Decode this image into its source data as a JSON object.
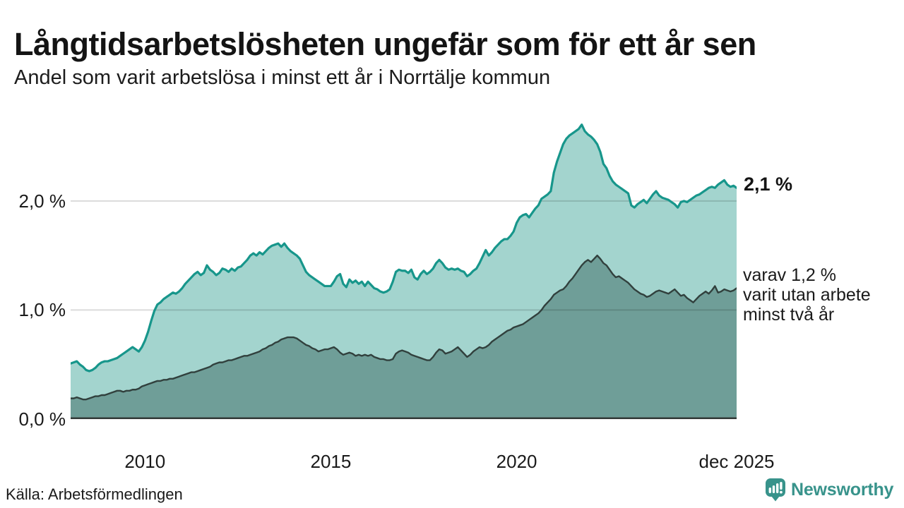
{
  "header": {
    "title": "Långtidsarbetslösheten ungefär som för ett år sen",
    "subtitle": "Andel som varit arbetslösa i minst ett år i Norrtälje kommun"
  },
  "annotations": {
    "end_value": "2,1 %",
    "note_lines": [
      "varav 1,2 %",
      "varit utan arbete",
      "minst två år"
    ]
  },
  "footer": {
    "source": "Källa: Arbetsförmedlingen",
    "logo_text": "Newsworthy"
  },
  "colors": {
    "accent_teal_line": "#17968b",
    "fill_light_teal": "#a3d4ce",
    "dark_line": "#31403d",
    "fill_dark_teal": "#6f9e98",
    "gridline_on_white": "#d9d9d9",
    "baseline": "#333a38",
    "text": "#1a1a1a",
    "logo_teal": "#38938b"
  },
  "chart_data": {
    "type": "area",
    "title": "Långtidsarbetslösheten ungefär som för ett år sen",
    "subtitle": "Andel som varit arbetslösa i minst ett år i Norrtälje kommun",
    "x_unit": "month",
    "x_start": "2008-01",
    "x_end": "2025-12",
    "ylim": [
      0,
      2.84
    ],
    "grid": "horizontal",
    "legend_position": "end-of-line-labels",
    "y_ticks": [
      {
        "label": "2,0 %",
        "value": 2.0
      },
      {
        "label": "1,0 %",
        "value": 1.0
      },
      {
        "label": "0,0 %",
        "value": 0.0
      }
    ],
    "x_ticks": [
      {
        "label": "2010",
        "month_index": 24
      },
      {
        "label": "2015",
        "month_index": 84
      },
      {
        "label": "2020",
        "month_index": 144
      },
      {
        "label": "dec 2025",
        "month_index": 215
      }
    ],
    "series": [
      {
        "name": "Arbetslösa minst ett år",
        "end_label": "2,1 %",
        "line_color": "#17968b",
        "fill_color": "#a3d4ce",
        "line_width": 3.2,
        "values": [
          0.51,
          0.52,
          0.53,
          0.5,
          0.48,
          0.45,
          0.44,
          0.45,
          0.47,
          0.5,
          0.52,
          0.53,
          0.53,
          0.54,
          0.55,
          0.56,
          0.58,
          0.6,
          0.62,
          0.64,
          0.66,
          0.64,
          0.62,
          0.66,
          0.72,
          0.8,
          0.9,
          0.99,
          1.05,
          1.07,
          1.1,
          1.12,
          1.14,
          1.16,
          1.15,
          1.17,
          1.2,
          1.24,
          1.27,
          1.3,
          1.33,
          1.35,
          1.32,
          1.34,
          1.41,
          1.37,
          1.35,
          1.32,
          1.34,
          1.38,
          1.37,
          1.35,
          1.38,
          1.36,
          1.39,
          1.4,
          1.43,
          1.46,
          1.5,
          1.52,
          1.5,
          1.53,
          1.51,
          1.54,
          1.57,
          1.59,
          1.6,
          1.61,
          1.58,
          1.61,
          1.57,
          1.54,
          1.52,
          1.5,
          1.47,
          1.41,
          1.35,
          1.32,
          1.3,
          1.28,
          1.26,
          1.24,
          1.22,
          1.22,
          1.22,
          1.26,
          1.31,
          1.33,
          1.24,
          1.21,
          1.28,
          1.25,
          1.27,
          1.24,
          1.26,
          1.22,
          1.26,
          1.23,
          1.2,
          1.19,
          1.17,
          1.16,
          1.17,
          1.19,
          1.26,
          1.35,
          1.37,
          1.36,
          1.36,
          1.34,
          1.37,
          1.3,
          1.28,
          1.33,
          1.36,
          1.33,
          1.35,
          1.38,
          1.43,
          1.46,
          1.43,
          1.39,
          1.37,
          1.38,
          1.37,
          1.38,
          1.36,
          1.35,
          1.31,
          1.33,
          1.36,
          1.38,
          1.43,
          1.49,
          1.55,
          1.5,
          1.53,
          1.57,
          1.6,
          1.63,
          1.65,
          1.65,
          1.68,
          1.72,
          1.8,
          1.85,
          1.87,
          1.88,
          1.85,
          1.89,
          1.93,
          1.96,
          2.02,
          2.04,
          2.06,
          2.09,
          2.26,
          2.36,
          2.44,
          2.52,
          2.57,
          2.6,
          2.62,
          2.64,
          2.66,
          2.7,
          2.64,
          2.61,
          2.59,
          2.56,
          2.52,
          2.45,
          2.34,
          2.3,
          2.23,
          2.18,
          2.15,
          2.13,
          2.11,
          2.09,
          2.07,
          1.96,
          1.94,
          1.97,
          1.99,
          2.01,
          1.98,
          2.02,
          2.06,
          2.09,
          2.05,
          2.03,
          2.02,
          2.01,
          1.99,
          1.97,
          1.94,
          1.99,
          2.0,
          1.99,
          2.01,
          2.03,
          2.05,
          2.06,
          2.08,
          2.1,
          2.12,
          2.13,
          2.12,
          2.15,
          2.17,
          2.19,
          2.15,
          2.13,
          2.14,
          2.12
        ]
      },
      {
        "name": "varav utan arbete minst två år",
        "end_label": "varav 1,2 % varit utan arbete minst två år",
        "line_color": "#31403d",
        "fill_color": "#6f9e98",
        "line_width": 2.4,
        "values": [
          0.19,
          0.19,
          0.2,
          0.19,
          0.18,
          0.18,
          0.19,
          0.2,
          0.21,
          0.21,
          0.22,
          0.22,
          0.23,
          0.24,
          0.25,
          0.26,
          0.26,
          0.25,
          0.26,
          0.26,
          0.27,
          0.27,
          0.28,
          0.3,
          0.31,
          0.32,
          0.33,
          0.34,
          0.35,
          0.35,
          0.36,
          0.36,
          0.37,
          0.37,
          0.38,
          0.39,
          0.4,
          0.41,
          0.42,
          0.43,
          0.43,
          0.44,
          0.45,
          0.46,
          0.47,
          0.48,
          0.5,
          0.51,
          0.52,
          0.52,
          0.53,
          0.54,
          0.54,
          0.55,
          0.56,
          0.57,
          0.58,
          0.58,
          0.59,
          0.6,
          0.61,
          0.62,
          0.64,
          0.65,
          0.67,
          0.68,
          0.7,
          0.71,
          0.73,
          0.74,
          0.75,
          0.75,
          0.75,
          0.74,
          0.72,
          0.7,
          0.68,
          0.67,
          0.65,
          0.64,
          0.62,
          0.63,
          0.64,
          0.64,
          0.65,
          0.66,
          0.64,
          0.61,
          0.59,
          0.6,
          0.61,
          0.6,
          0.58,
          0.59,
          0.58,
          0.59,
          0.58,
          0.59,
          0.57,
          0.56,
          0.55,
          0.55,
          0.54,
          0.54,
          0.55,
          0.6,
          0.62,
          0.63,
          0.62,
          0.61,
          0.59,
          0.58,
          0.57,
          0.56,
          0.55,
          0.54,
          0.54,
          0.57,
          0.61,
          0.64,
          0.63,
          0.6,
          0.61,
          0.62,
          0.64,
          0.66,
          0.63,
          0.6,
          0.57,
          0.59,
          0.62,
          0.64,
          0.66,
          0.65,
          0.66,
          0.68,
          0.71,
          0.73,
          0.75,
          0.77,
          0.79,
          0.81,
          0.82,
          0.84,
          0.85,
          0.86,
          0.87,
          0.89,
          0.91,
          0.93,
          0.95,
          0.97,
          1.0,
          1.04,
          1.07,
          1.1,
          1.14,
          1.16,
          1.18,
          1.19,
          1.22,
          1.26,
          1.29,
          1.33,
          1.37,
          1.41,
          1.44,
          1.46,
          1.44,
          1.47,
          1.5,
          1.47,
          1.43,
          1.41,
          1.37,
          1.33,
          1.3,
          1.31,
          1.29,
          1.27,
          1.25,
          1.22,
          1.19,
          1.17,
          1.15,
          1.14,
          1.12,
          1.13,
          1.15,
          1.17,
          1.18,
          1.17,
          1.16,
          1.15,
          1.17,
          1.19,
          1.16,
          1.13,
          1.14,
          1.11,
          1.09,
          1.07,
          1.1,
          1.13,
          1.15,
          1.17,
          1.15,
          1.18,
          1.22,
          1.16,
          1.17,
          1.19,
          1.18,
          1.17,
          1.18,
          1.2
        ]
      }
    ]
  }
}
